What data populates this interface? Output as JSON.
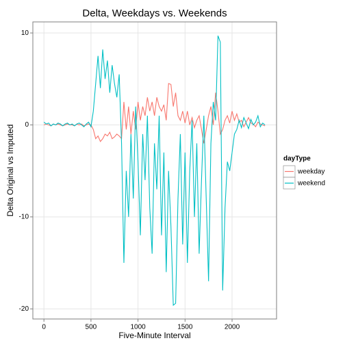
{
  "chart_data": {
    "type": "line",
    "title": "Delta, Weekdays vs. Weekends",
    "x_label": "Five-Minute Interval",
    "y_label": "Delta Original vs Imputed",
    "legend_title": "dayType",
    "legend_position": "right",
    "grid": true,
    "x": [
      0,
      25,
      50,
      75,
      100,
      125,
      150,
      175,
      200,
      225,
      250,
      275,
      300,
      325,
      350,
      375,
      400,
      425,
      450,
      475,
      500,
      525,
      550,
      575,
      600,
      625,
      650,
      675,
      700,
      725,
      750,
      775,
      800,
      825,
      850,
      875,
      900,
      925,
      950,
      975,
      1000,
      1025,
      1050,
      1075,
      1100,
      1125,
      1150,
      1175,
      1200,
      1225,
      1250,
      1275,
      1300,
      1325,
      1350,
      1375,
      1400,
      1425,
      1450,
      1475,
      1500,
      1525,
      1550,
      1575,
      1600,
      1625,
      1650,
      1675,
      1700,
      1725,
      1750,
      1775,
      1800,
      1825,
      1850,
      1875,
      1900,
      1925,
      1950,
      1975,
      2000,
      2025,
      2050,
      2075,
      2100,
      2125,
      2150,
      2175,
      2200,
      2225,
      2250,
      2275,
      2300,
      2325,
      2350
    ],
    "series": [
      {
        "name": "weekday",
        "color": "#F8766D",
        "values": [
          0,
          0.1,
          0,
          -0.1,
          0.1,
          0,
          0.1,
          0,
          -0.1,
          0,
          0.1,
          0,
          0,
          -0.1,
          0.1,
          0,
          0.1,
          -0.1,
          0,
          0.1,
          0,
          -0.5,
          -1.5,
          -1.2,
          -1.8,
          -1.5,
          -1,
          -1.2,
          -0.8,
          -1.5,
          -1.3,
          -1,
          -1.2,
          -1.5,
          2.5,
          -0.5,
          2,
          -1,
          1.5,
          -0.5,
          2.5,
          0.5,
          2,
          1,
          3,
          1.5,
          2.5,
          1,
          3,
          2,
          1.5,
          2.2,
          0.5,
          4.5,
          4.4,
          2,
          3.5,
          1,
          0.5,
          1.5,
          0.2,
          1.5,
          0,
          0.8,
          -0.3,
          0.5,
          1,
          -0.5,
          -2,
          -0.5,
          1,
          2,
          0,
          3.5,
          1.5,
          -1,
          -0.5,
          0.5,
          1,
          0.2,
          1.5,
          0.5,
          1.2,
          0.3,
          0.5,
          -0.2,
          0.3,
          0.8,
          0.2,
          0.1,
          -0.2,
          0.3,
          0.1,
          0,
          -0.1
        ]
      },
      {
        "name": "weekend",
        "color": "#00BFC4",
        "values": [
          0.3,
          0.1,
          0.2,
          -0.1,
          0.1,
          0,
          0.2,
          0.1,
          -0.1,
          0.1,
          0.2,
          0,
          0.1,
          -0.1,
          0.1,
          0.2,
          0,
          -0.2,
          0.1,
          0.3,
          -0.2,
          1.5,
          4.5,
          7.5,
          4,
          8.2,
          5,
          7,
          3.5,
          6.5,
          4.5,
          3,
          5.5,
          -2,
          -15,
          -5,
          -10,
          -1,
          -8,
          2,
          -4,
          -12,
          -1,
          -6,
          1,
          -9,
          -14,
          -2,
          -7,
          1,
          -12,
          -3,
          -16,
          -5,
          -11,
          -19.6,
          -19.4,
          -8,
          -1,
          -13,
          -3,
          -15,
          -5,
          0.5,
          -10,
          -2,
          -14,
          -6,
          1,
          -8,
          -17,
          -2,
          2.5,
          0.5,
          9.7,
          9,
          -18,
          -9,
          -4,
          -5,
          -3,
          -1,
          -0.5,
          0.5,
          -0.3,
          0.8,
          0.2,
          -0.4,
          0.6,
          0,
          0.3,
          1,
          -0.2,
          0.2,
          0
        ]
      }
    ],
    "xlim": [
      -117.75,
      2472.75
    ],
    "ylim": [
      -21.1,
      11.2
    ],
    "xticks": [
      0,
      500,
      1000,
      1500,
      2000
    ],
    "yticks": [
      -20,
      -10,
      0,
      10
    ]
  }
}
